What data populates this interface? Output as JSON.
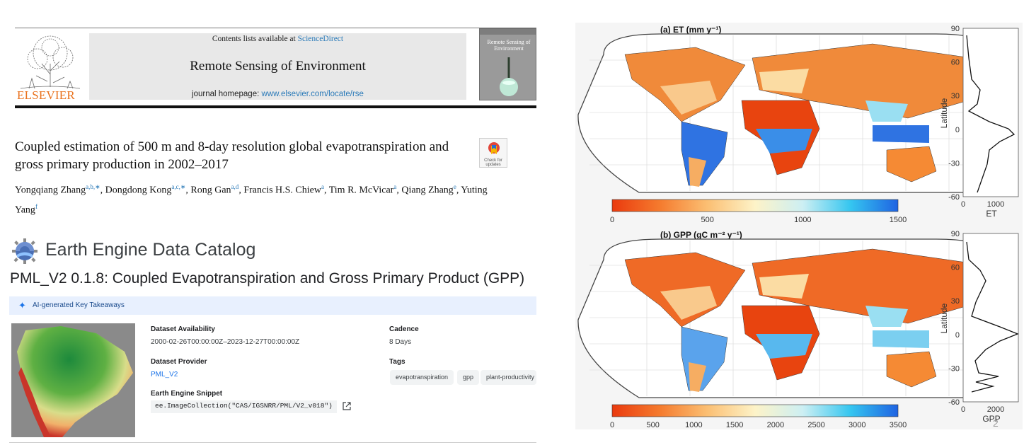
{
  "paper": {
    "publisher": "ELSEVIER",
    "contents_prefix": "Contents lists available at ",
    "contents_link": "ScienceDirect",
    "journal": "Remote Sensing of Environment",
    "homepage_prefix": "journal homepage: ",
    "homepage_url": "www.elsevier.com/locate/rse",
    "cover_title": "Remote Sensing of Environment",
    "check_updates": "Check for updates",
    "title": "Coupled estimation of 500 m and 8-day resolution global evapotranspiration and gross primary production in 2002–2017",
    "authors": [
      {
        "name": "Yongqiang Zhang",
        "sup": "a,b,∗",
        "sep": ", "
      },
      {
        "name": "Dongdong Kong",
        "sup": "a,c,∗",
        "sep": ", "
      },
      {
        "name": "Rong Gan",
        "sup": "a,d",
        "sep": ", "
      },
      {
        "name": "Francis H.S. Chiew",
        "sup": "a",
        "sep": ", "
      },
      {
        "name": "Tim R. McVicar",
        "sup": "a",
        "sep": ", "
      },
      {
        "name": "Qiang Zhang",
        "sup": "e",
        "sep": ", "
      },
      {
        "name": "Yuting Yang",
        "sup": "f",
        "sep": ""
      }
    ]
  },
  "catalog": {
    "header": "Earth Engine Data Catalog",
    "dataset_title": "PML_V2 0.1.8: Coupled Evapotranspiration and Gross Primary Product (GPP)",
    "ai_label": "AI-generated Key Takeaways",
    "availability_label": "Dataset Availability",
    "availability_value": "2000-02-26T00:00:00Z–2023-12-27T00:00:00Z",
    "provider_label": "Dataset Provider",
    "provider_value": "PML_V2",
    "snippet_label": "Earth Engine Snippet",
    "snippet_value": "ee.ImageCollection(\"CAS/IGSNRR/PML/V2_v018\")",
    "cadence_label": "Cadence",
    "cadence_value": "8 Days",
    "tags_label": "Tags",
    "tags": [
      "evapotranspiration",
      "gpp",
      "plant-productivity"
    ],
    "colors": {
      "link": "#1a73e8",
      "ai_bar": "#e8f0fe"
    }
  },
  "figure": {
    "page_number": "2",
    "colorbar_colors": [
      "#ea3a0e",
      "#f57b2e",
      "#fbbf73",
      "#fdf3c8",
      "#cdeff3",
      "#35c6f0",
      "#1f63e2"
    ],
    "panels": [
      {
        "title": "(a) ET (mm y⁻¹)",
        "colorbar_ticks": [
          "0",
          "500",
          "1000",
          "1500"
        ],
        "profile_xlabel": "ET",
        "profile_xticks": [
          "0",
          "1000"
        ],
        "profile_ylabel": "Latitude",
        "profile_yticks": [
          "90",
          "60",
          "30",
          "0",
          "-30",
          "-60"
        ]
      },
      {
        "title": "(b) GPP (gC m⁻² y⁻¹)",
        "colorbar_ticks": [
          "0",
          "500",
          "1000",
          "1500",
          "2000",
          "2500",
          "3000",
          "3500"
        ],
        "profile_xlabel": "GPP",
        "profile_xticks": [
          "0",
          "2000"
        ],
        "profile_ylabel": "Latitude",
        "profile_yticks": [
          "90",
          "60",
          "30",
          "0",
          "-30",
          "-60"
        ]
      }
    ]
  }
}
